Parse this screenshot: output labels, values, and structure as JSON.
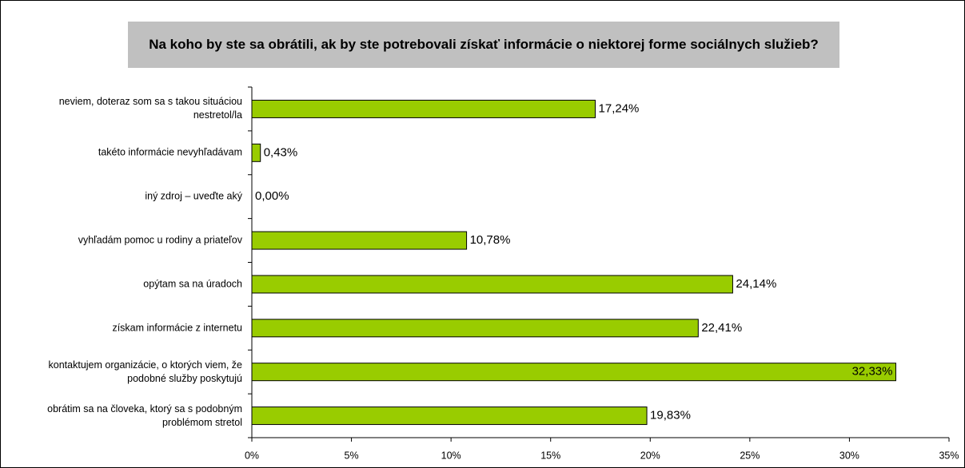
{
  "chart_data": {
    "type": "barh",
    "title": "Na koho by ste sa obrátili, ak by ste potrebovali získať informácie o niektorej forme sociálnych služieb?",
    "categories": [
      "neviem, doteraz som sa s takou situáciou nestretol/la",
      "takéto informácie nevyhľadávam",
      "iný zdroj – uveďte aký",
      "vyhľadám pomoc u rodiny a priateľov",
      "opýtam sa na úradoch",
      "získam informácie z internetu",
      "kontaktujem organizácie, o ktorých viem, že podobné služby poskytujú",
      "obrátim sa na človeka, ktorý sa s podobným problémom stretol"
    ],
    "values": [
      17.24,
      0.43,
      0.0,
      10.78,
      24.14,
      22.41,
      32.33,
      19.83
    ],
    "value_labels": [
      "17,24%",
      "0,43%",
      "0,00%",
      "10,78%",
      "24,14%",
      "22,41%",
      "32,33%",
      "19,83%"
    ],
    "color": "#99cc00",
    "xlim": [
      0,
      35
    ],
    "xticks": [
      {
        "value": 0,
        "label": "0%"
      },
      {
        "value": 5,
        "label": "5%"
      },
      {
        "value": 10,
        "label": "10%"
      },
      {
        "value": 15,
        "label": "15%"
      },
      {
        "value": 20,
        "label": "20%"
      },
      {
        "value": 25,
        "label": "25%"
      },
      {
        "value": 30,
        "label": "30%"
      },
      {
        "value": 35,
        "label": "35%"
      }
    ]
  }
}
